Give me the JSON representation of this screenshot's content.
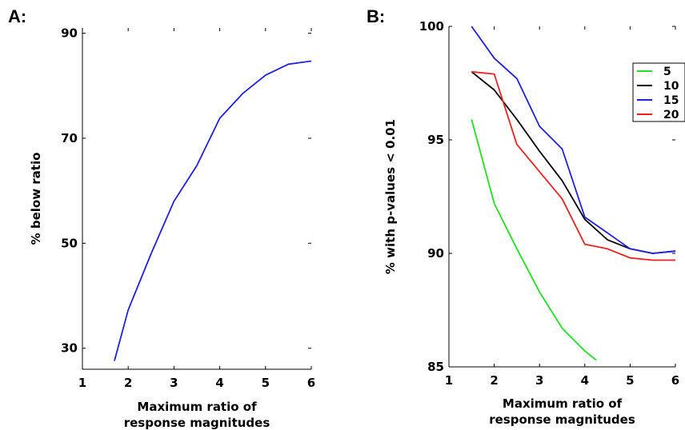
{
  "panels": [
    {
      "letter": "A:"
    },
    {
      "letter": "B:"
    }
  ],
  "chart_data": [
    {
      "type": "line",
      "xlabel": [
        "Maximum ratio of",
        "response magnitudes"
      ],
      "ylabel": "% below ratio",
      "xlim": [
        1,
        6
      ],
      "ylim": [
        26,
        91
      ],
      "xticks": [
        1,
        2,
        3,
        4,
        5,
        6
      ],
      "yticks": [
        30,
        50,
        70,
        90
      ],
      "grid": false,
      "series": [
        {
          "color": "#2020e0",
          "x": [
            1.7,
            2.0,
            2.5,
            3.0,
            3.5,
            4.0,
            4.5,
            5.0,
            5.5,
            6.0
          ],
          "y": [
            27.6,
            37.3,
            48.0,
            58.0,
            64.8,
            73.8,
            78.5,
            82.0,
            84.1,
            84.7
          ]
        }
      ]
    },
    {
      "type": "line",
      "xlabel": [
        "Maximum ratio of",
        "response magnitudes"
      ],
      "ylabel": "% with p-values < 0.01",
      "xlim": [
        1,
        6
      ],
      "ylim": [
        85,
        100
      ],
      "xticks": [
        1,
        2,
        3,
        4,
        5,
        6
      ],
      "yticks": [
        85,
        90,
        95,
        100
      ],
      "grid": false,
      "legend": "top-right",
      "series": [
        {
          "name": "5",
          "color": "#22e022",
          "x": [
            1.5,
            2.0,
            2.5,
            3.0,
            3.5,
            4.0,
            4.25
          ],
          "y": [
            95.9,
            92.2,
            90.2,
            88.3,
            86.7,
            85.7,
            85.3
          ]
        },
        {
          "name": "10",
          "color": "#000000",
          "x": [
            1.5,
            2.0,
            2.5,
            3.0,
            3.5,
            4.0,
            4.5,
            5.0,
            5.5,
            6.0
          ],
          "y": [
            98.0,
            97.2,
            95.9,
            94.5,
            93.2,
            91.5,
            90.6,
            90.2,
            90.0,
            90.1
          ]
        },
        {
          "name": "15",
          "color": "#2020e0",
          "x": [
            1.5,
            2.0,
            2.5,
            3.0,
            3.5,
            4.0,
            4.5,
            5.0,
            5.5,
            6.0
          ],
          "y": [
            100.0,
            98.6,
            97.7,
            95.6,
            94.6,
            91.6,
            90.9,
            90.2,
            90.0,
            90.1
          ]
        },
        {
          "name": "20",
          "color": "#ee2222",
          "x": [
            1.5,
            2.0,
            2.5,
            3.0,
            3.5,
            4.0,
            4.5,
            5.0,
            5.5,
            6.0
          ],
          "y": [
            98.0,
            97.9,
            94.8,
            93.6,
            92.4,
            90.4,
            90.2,
            89.8,
            89.7,
            89.7
          ]
        }
      ]
    }
  ]
}
